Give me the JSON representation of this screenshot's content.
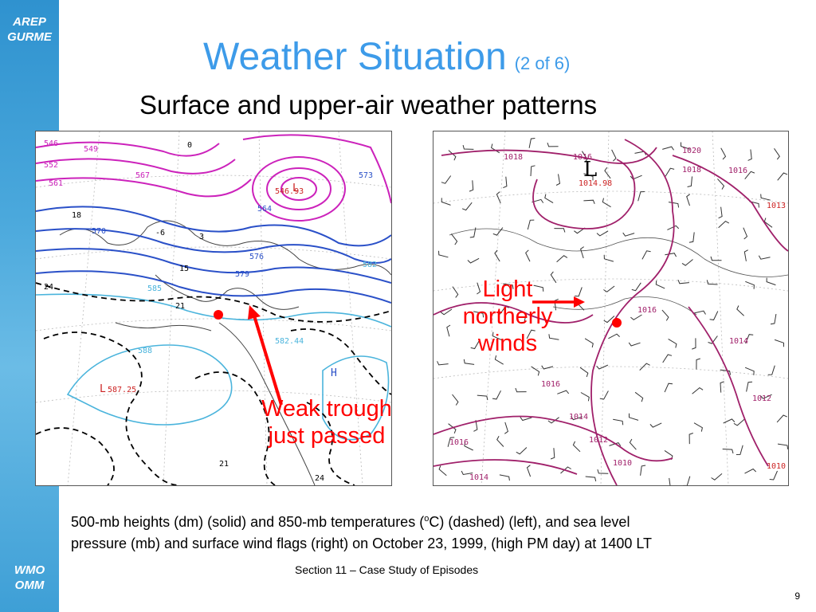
{
  "sidebar": {
    "top_logo_line1": "AREP",
    "top_logo_line2": "GURME",
    "bottom_logo_line1": "WMO",
    "bottom_logo_line2": "OMM"
  },
  "title": {
    "main": "Weather Situation",
    "sub": "(2 of 6)"
  },
  "subtitle": "Surface and upper-air weather patterns",
  "left_map": {
    "height_labels": [
      "546",
      "549",
      "552",
      "561",
      "564",
      "567",
      "570",
      "573",
      "576",
      "579",
      "582",
      "585",
      "588",
      "582.44",
      "587.25",
      "546.93"
    ],
    "temp_labels": [
      "-6",
      "-3",
      "0",
      "3",
      "6",
      "9",
      "12",
      "15",
      "18",
      "21",
      "24"
    ],
    "high_label": "H",
    "low_label": "L"
  },
  "right_map": {
    "isobar_labels": [
      "1010",
      "1012",
      "1014",
      "1016",
      "1018",
      "1020"
    ],
    "low_values": [
      "1014.98",
      "1013",
      "1010"
    ],
    "big_low_symbol": "L"
  },
  "annotations": {
    "right": [
      "Light",
      "northerly",
      "winds"
    ],
    "left": [
      "Weak trough",
      "just passed"
    ],
    "color": "#ff0000"
  },
  "caption": {
    "line1_prefix": "500-mb heights (dm) (solid) and 850-mb temperatures (",
    "degree_sup": "o",
    "line1_suffix": "C) (dashed) (left), and sea level",
    "line2": "pressure (mb) and surface wind flags (right) on October 23, 1999, (high PM day) at 1400 LT"
  },
  "footer": "Section 11 – Case Study of Episodes",
  "page_number": "9",
  "colors": {
    "accent": "#3d9be9",
    "height_contours": "#2a50c8",
    "high_latitude_contours": "#cc22bb",
    "temperature_lines": "#000000",
    "isobars": "#a0206a",
    "annotation": "#ff0000"
  }
}
